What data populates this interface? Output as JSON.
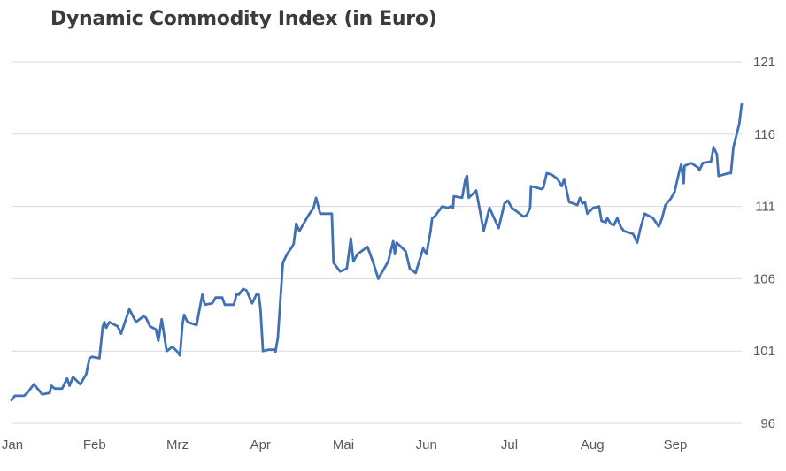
{
  "chart_data": {
    "type": "line",
    "title": "Dynamic Commodity Index (in Euro)",
    "xlabel": "",
    "ylabel": "",
    "x_unit": "months since start of Jan",
    "xlim": [
      0,
      8.8
    ],
    "ylim": [
      96,
      121
    ],
    "y_ticks": [
      96,
      101,
      106,
      111,
      116,
      121
    ],
    "y_axis_side": "right",
    "x_ticks": [
      {
        "x": 0,
        "label": "Jan"
      },
      {
        "x": 1,
        "label": "Feb"
      },
      {
        "x": 2,
        "label": "Mrz"
      },
      {
        "x": 3,
        "label": "Apr"
      },
      {
        "x": 4,
        "label": "Mai"
      },
      {
        "x": 5,
        "label": "Jun"
      },
      {
        "x": 6,
        "label": "Jul"
      },
      {
        "x": 7,
        "label": "Aug"
      },
      {
        "x": 8,
        "label": "Sep"
      }
    ],
    "grid": true,
    "legend": "none",
    "series": [
      {
        "name": "Dynamic Commodity Index",
        "color": "#4170b4",
        "points": [
          [
            0,
            97.6
          ],
          [
            0.04,
            97.9
          ],
          [
            0.15,
            97.9
          ],
          [
            0.19,
            98.1
          ],
          [
            0.27,
            98.7
          ],
          [
            0.37,
            98.0
          ],
          [
            0.46,
            98.1
          ],
          [
            0.48,
            98.6
          ],
          [
            0.52,
            98.4
          ],
          [
            0.61,
            98.4
          ],
          [
            0.67,
            99.1
          ],
          [
            0.7,
            98.6
          ],
          [
            0.74,
            99.2
          ],
          [
            0.83,
            98.7
          ],
          [
            0.9,
            99.4
          ],
          [
            0.94,
            100.5
          ],
          [
            0.97,
            100.6
          ],
          [
            1.06,
            100.5
          ],
          [
            1.1,
            102.7
          ],
          [
            1.12,
            103.0
          ],
          [
            1.14,
            102.6
          ],
          [
            1.18,
            103.0
          ],
          [
            1.28,
            102.7
          ],
          [
            1.32,
            102.2
          ],
          [
            1.42,
            103.9
          ],
          [
            1.5,
            103.0
          ],
          [
            1.59,
            103.4
          ],
          [
            1.62,
            103.3
          ],
          [
            1.67,
            102.7
          ],
          [
            1.74,
            102.5
          ],
          [
            1.77,
            101.7
          ],
          [
            1.81,
            103.2
          ],
          [
            1.87,
            101.0
          ],
          [
            1.94,
            101.3
          ],
          [
            1.99,
            101.0
          ],
          [
            2.03,
            100.7
          ],
          [
            2.06,
            102.8
          ],
          [
            2.08,
            103.5
          ],
          [
            2.12,
            103.0
          ],
          [
            2.23,
            102.8
          ],
          [
            2.3,
            104.9
          ],
          [
            2.33,
            104.2
          ],
          [
            2.42,
            104.3
          ],
          [
            2.46,
            104.7
          ],
          [
            2.54,
            104.7
          ],
          [
            2.57,
            104.2
          ],
          [
            2.68,
            104.2
          ],
          [
            2.71,
            104.9
          ],
          [
            2.74,
            104.9
          ],
          [
            2.79,
            105.3
          ],
          [
            2.83,
            105.2
          ],
          [
            2.9,
            104.3
          ],
          [
            2.95,
            104.9
          ],
          [
            2.98,
            104.9
          ],
          [
            3.0,
            103.9
          ],
          [
            3.03,
            101.0
          ],
          [
            3.1,
            101.1
          ],
          [
            3.17,
            101.1
          ],
          [
            3.18,
            100.9
          ],
          [
            3.21,
            101.9
          ],
          [
            3.27,
            107.1
          ],
          [
            3.32,
            107.7
          ],
          [
            3.38,
            108.2
          ],
          [
            3.4,
            108.4
          ],
          [
            3.43,
            109.8
          ],
          [
            3.47,
            109.3
          ],
          [
            3.58,
            110.4
          ],
          [
            3.64,
            110.9
          ],
          [
            3.67,
            111.6
          ],
          [
            3.72,
            110.5
          ],
          [
            3.86,
            110.5
          ],
          [
            3.88,
            107.1
          ],
          [
            3.96,
            106.5
          ],
          [
            4.04,
            106.7
          ],
          [
            4.09,
            108.8
          ],
          [
            4.12,
            107.2
          ],
          [
            4.17,
            107.7
          ],
          [
            4.29,
            108.2
          ],
          [
            4.36,
            107.1
          ],
          [
            4.42,
            106.0
          ],
          [
            4.54,
            107.2
          ],
          [
            4.6,
            108.6
          ],
          [
            4.62,
            107.7
          ],
          [
            4.64,
            108.5
          ],
          [
            4.75,
            107.9
          ],
          [
            4.8,
            106.7
          ],
          [
            4.87,
            106.4
          ],
          [
            4.96,
            108.1
          ],
          [
            5.0,
            107.7
          ],
          [
            5.05,
            109.3
          ],
          [
            5.07,
            110.2
          ],
          [
            5.1,
            110.3
          ],
          [
            5.19,
            111.0
          ],
          [
            5.26,
            110.9
          ],
          [
            5.29,
            111.0
          ],
          [
            5.32,
            110.9
          ],
          [
            5.33,
            111.7
          ],
          [
            5.43,
            111.6
          ],
          [
            5.47,
            112.9
          ],
          [
            5.49,
            113.1
          ],
          [
            5.51,
            111.6
          ],
          [
            5.6,
            112.1
          ],
          [
            5.69,
            109.3
          ],
          [
            5.76,
            110.9
          ],
          [
            5.87,
            109.5
          ],
          [
            5.94,
            111.2
          ],
          [
            5.98,
            111.4
          ],
          [
            6.03,
            110.9
          ],
          [
            6.1,
            110.6
          ],
          [
            6.17,
            110.3
          ],
          [
            6.21,
            110.4
          ],
          [
            6.25,
            110.9
          ],
          [
            6.26,
            112.4
          ],
          [
            6.39,
            112.2
          ],
          [
            6.41,
            112.3
          ],
          [
            6.45,
            113.3
          ],
          [
            6.51,
            113.2
          ],
          [
            6.58,
            112.9
          ],
          [
            6.63,
            112.4
          ],
          [
            6.66,
            112.9
          ],
          [
            6.72,
            111.3
          ],
          [
            6.82,
            111.1
          ],
          [
            6.85,
            111.6
          ],
          [
            6.88,
            111.2
          ],
          [
            6.91,
            111.3
          ],
          [
            6.94,
            110.5
          ],
          [
            7.01,
            110.9
          ],
          [
            7.08,
            111.0
          ],
          [
            7.11,
            110.0
          ],
          [
            7.16,
            109.9
          ],
          [
            7.18,
            110.2
          ],
          [
            7.22,
            109.8
          ],
          [
            7.26,
            109.7
          ],
          [
            7.3,
            110.2
          ],
          [
            7.34,
            109.6
          ],
          [
            7.38,
            109.3
          ],
          [
            7.49,
            109.1
          ],
          [
            7.54,
            108.5
          ],
          [
            7.58,
            109.5
          ],
          [
            7.63,
            110.5
          ],
          [
            7.73,
            110.2
          ],
          [
            7.8,
            109.6
          ],
          [
            7.84,
            110.2
          ],
          [
            7.88,
            111.1
          ],
          [
            7.94,
            111.5
          ],
          [
            7.99,
            112.0
          ],
          [
            8.05,
            113.5
          ],
          [
            8.07,
            113.9
          ],
          [
            8.1,
            112.6
          ],
          [
            8.11,
            113.8
          ],
          [
            8.19,
            114.0
          ],
          [
            8.27,
            113.7
          ],
          [
            8.29,
            113.5
          ],
          [
            8.33,
            114.0
          ],
          [
            8.43,
            114.1
          ],
          [
            8.46,
            115.1
          ],
          [
            8.5,
            114.6
          ],
          [
            8.52,
            113.1
          ],
          [
            8.64,
            113.3
          ],
          [
            8.67,
            113.3
          ],
          [
            8.7,
            115.1
          ],
          [
            8.77,
            116.7
          ],
          [
            8.8,
            118.1
          ]
        ]
      }
    ]
  }
}
